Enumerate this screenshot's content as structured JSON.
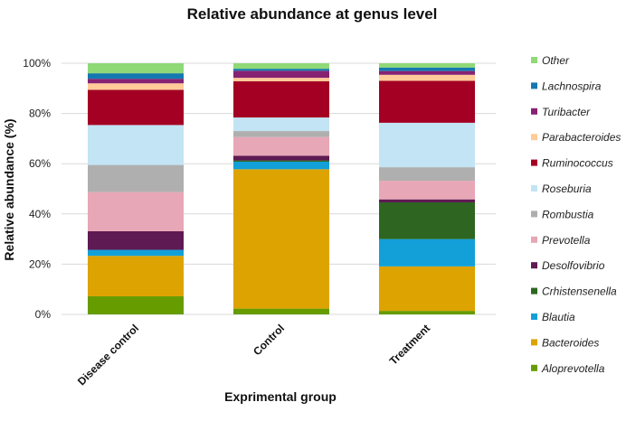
{
  "chart_data": {
    "type": "bar",
    "stacked": true,
    "title": "Relative abundance at genus level",
    "xlabel": "Exprimental group",
    "ylabel": "Relative abundance (%)",
    "ylim": [
      0,
      100
    ],
    "yticks": [
      "0%",
      "20%",
      "40%",
      "60%",
      "80%",
      "100%"
    ],
    "ytick_values": [
      0,
      20,
      40,
      60,
      80,
      100
    ],
    "grid": true,
    "legend_position": "right",
    "categories": [
      "Disease control",
      "Control",
      "Treatment"
    ],
    "series": [
      {
        "name": "Aloprevotella",
        "color": "#669C00",
        "values": [
          7.2,
          2.3,
          1.4
        ]
      },
      {
        "name": "Bacteroides",
        "color": "#DDA300",
        "values": [
          16.1,
          55.5,
          17.7
        ]
      },
      {
        "name": "Blautia",
        "color": "#13A0D9",
        "values": [
          2.4,
          3.0,
          10.9
        ]
      },
      {
        "name": "Crhistensenella",
        "color": "#2E6621",
        "values": [
          0,
          0.5,
          14.6
        ]
      },
      {
        "name": "Desolfovibrio",
        "color": "#5E1A53",
        "values": [
          7.4,
          1.9,
          1.2
        ]
      },
      {
        "name": "Prevotella",
        "color": "#E8A7B6",
        "values": [
          15.6,
          7.4,
          7.4
        ]
      },
      {
        "name": "Rombustia",
        "color": "#AFAFAF",
        "values": [
          10.8,
          2.4,
          5.4
        ]
      },
      {
        "name": "Roseburia",
        "color": "#C3E4F4",
        "values": [
          15.9,
          5.4,
          17.7
        ]
      },
      {
        "name": "Ruminococcus",
        "color": "#A30024",
        "values": [
          14.0,
          14.4,
          16.7
        ]
      },
      {
        "name": "Parabacteroides",
        "color": "#FFCB99",
        "values": [
          2.6,
          1.4,
          2.4
        ]
      },
      {
        "name": "Turibacter",
        "color": "#872273",
        "values": [
          1.8,
          2.8,
          1.5
        ]
      },
      {
        "name": "Lachnospira",
        "color": "#1479AF",
        "values": [
          2.2,
          0.8,
          1.4
        ]
      },
      {
        "name": "Other",
        "color": "#90D977",
        "values": [
          4.0,
          2.2,
          1.7
        ]
      }
    ]
  }
}
